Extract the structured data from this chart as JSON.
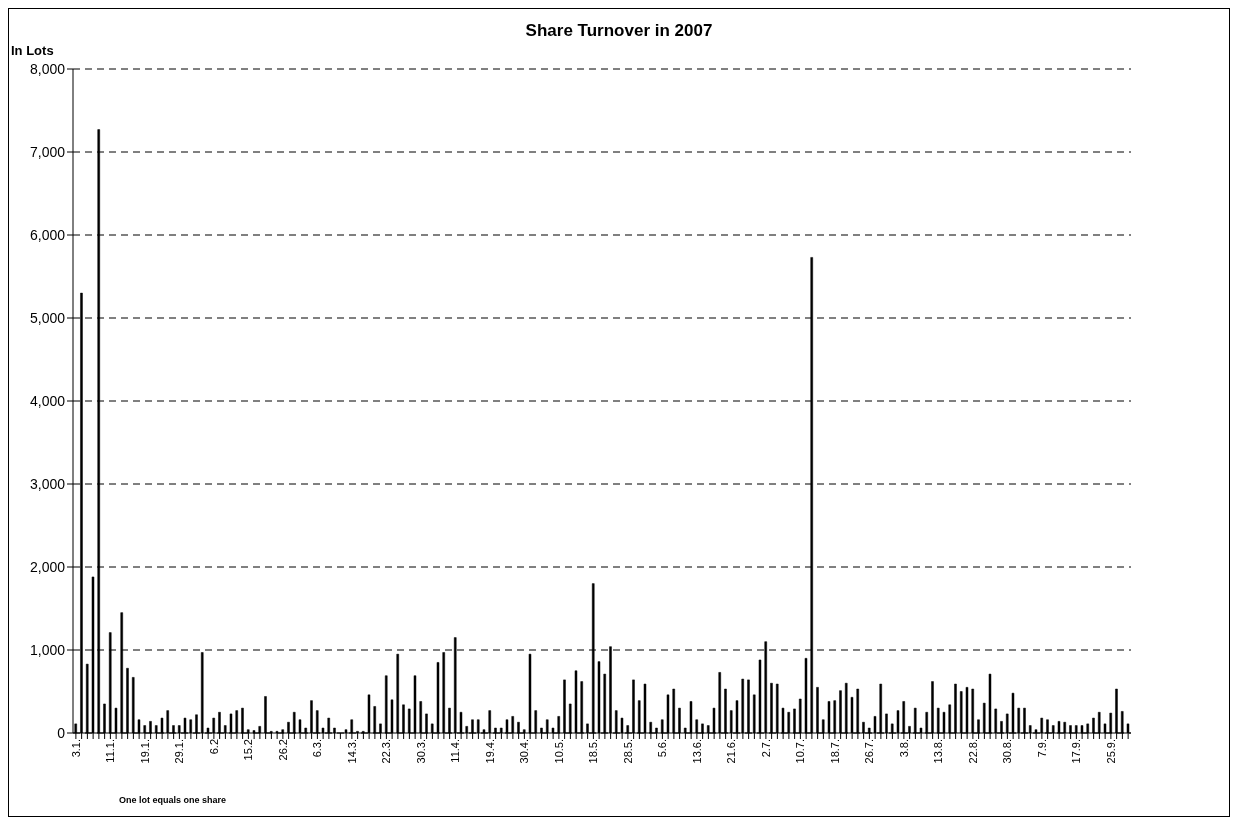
{
  "chart_data": {
    "type": "bar",
    "title": "Share Turnover in 2007",
    "ylabel": "In Lots",
    "annotations": [
      "One lot equals one share"
    ],
    "categories": [
      "3.1.",
      null,
      null,
      null,
      null,
      null,
      "11.1.",
      null,
      null,
      null,
      null,
      null,
      "19.1.",
      null,
      null,
      null,
      null,
      null,
      "29.1.",
      null,
      null,
      null,
      null,
      null,
      "6.2",
      null,
      null,
      null,
      null,
      null,
      "15.2",
      null,
      null,
      null,
      null,
      null,
      "26.2",
      null,
      null,
      null,
      null,
      null,
      "6.3.",
      null,
      null,
      null,
      null,
      null,
      "14.3.",
      null,
      null,
      null,
      null,
      null,
      "22.3.",
      null,
      null,
      null,
      null,
      null,
      "30.3.",
      null,
      null,
      null,
      null,
      null,
      "11.4.",
      null,
      null,
      null,
      null,
      null,
      "19.4.",
      null,
      null,
      null,
      null,
      null,
      "30.4.",
      null,
      null,
      null,
      null,
      null,
      "10.5.",
      null,
      null,
      null,
      null,
      null,
      "18.5.",
      null,
      null,
      null,
      null,
      null,
      "28.5.",
      null,
      null,
      null,
      null,
      null,
      "5.6.",
      null,
      null,
      null,
      null,
      null,
      "13.6.",
      null,
      null,
      null,
      null,
      null,
      "21.6.",
      null,
      null,
      null,
      null,
      null,
      "2.7.",
      null,
      null,
      null,
      null,
      null,
      "10.7.",
      null,
      null,
      null,
      null,
      null,
      "18.7.",
      null,
      null,
      null,
      null,
      null,
      "26.7.",
      null,
      null,
      null,
      null,
      null,
      "3.8.",
      null,
      null,
      null,
      null,
      null,
      "13.8.",
      null,
      null,
      null,
      null,
      null,
      "22.8.",
      null,
      null,
      null,
      null,
      null,
      "30.8.",
      null,
      null,
      null,
      null,
      null,
      "7.9.",
      null,
      null,
      null,
      null,
      null,
      "17.9.",
      null,
      null,
      null,
      null,
      null,
      "25.9.",
      null,
      null,
      null
    ],
    "values": [
      110,
      5300,
      830,
      1880,
      7270,
      350,
      1210,
      300,
      1450,
      780,
      670,
      160,
      90,
      140,
      90,
      180,
      270,
      90,
      90,
      180,
      160,
      220,
      970,
      60,
      180,
      250,
      90,
      230,
      270,
      300,
      40,
      30,
      80,
      440,
      20,
      20,
      40,
      130,
      250,
      160,
      60,
      390,
      270,
      60,
      180,
      60,
      null,
      40,
      160,
      20,
      20,
      460,
      320,
      110,
      690,
      400,
      950,
      340,
      290,
      690,
      380,
      230,
      110,
      850,
      970,
      300,
      1150,
      250,
      80,
      160,
      160,
      40,
      270,
      60,
      60,
      160,
      200,
      130,
      40,
      950,
      270,
      60,
      160,
      60,
      200,
      640,
      350,
      750,
      620,
      110,
      1800,
      860,
      710,
      1040,
      270,
      180,
      90,
      640,
      390,
      590,
      130,
      60,
      160,
      460,
      530,
      300,
      60,
      380,
      160,
      110,
      90,
      300,
      730,
      530,
      270,
      390,
      650,
      640,
      460,
      880,
      1100,
      600,
      590,
      300,
      250,
      290,
      410,
      900,
      5730,
      550,
      160,
      380,
      390,
      510,
      600,
      430,
      530,
      130,
      60,
      200,
      590,
      230,
      110,
      270,
      380,
      80,
      300,
      60,
      250,
      620,
      300,
      250,
      340,
      590,
      500,
      550,
      530,
      160,
      360,
      710,
      290,
      140,
      230,
      480,
      300,
      300,
      90,
      40,
      180,
      160,
      90,
      140,
      130,
      90,
      90,
      90,
      110,
      180,
      250,
      110,
      240,
      530,
      260,
      110
    ],
    "color": "#000000",
    "ylim": [
      0,
      8000
    ],
    "yticks": [
      {
        "value": 0,
        "label": "0"
      },
      {
        "value": 1000,
        "label": "1,000"
      },
      {
        "value": 2000,
        "label": "2,000"
      },
      {
        "value": 3000,
        "label": "3,000"
      },
      {
        "value": 4000,
        "label": "4,000"
      },
      {
        "value": 5000,
        "label": "5,000"
      },
      {
        "value": 6000,
        "label": "6,000"
      },
      {
        "value": 7000,
        "label": "7,000"
      },
      {
        "value": 8000,
        "label": "8,000"
      }
    ],
    "grid": "y"
  }
}
